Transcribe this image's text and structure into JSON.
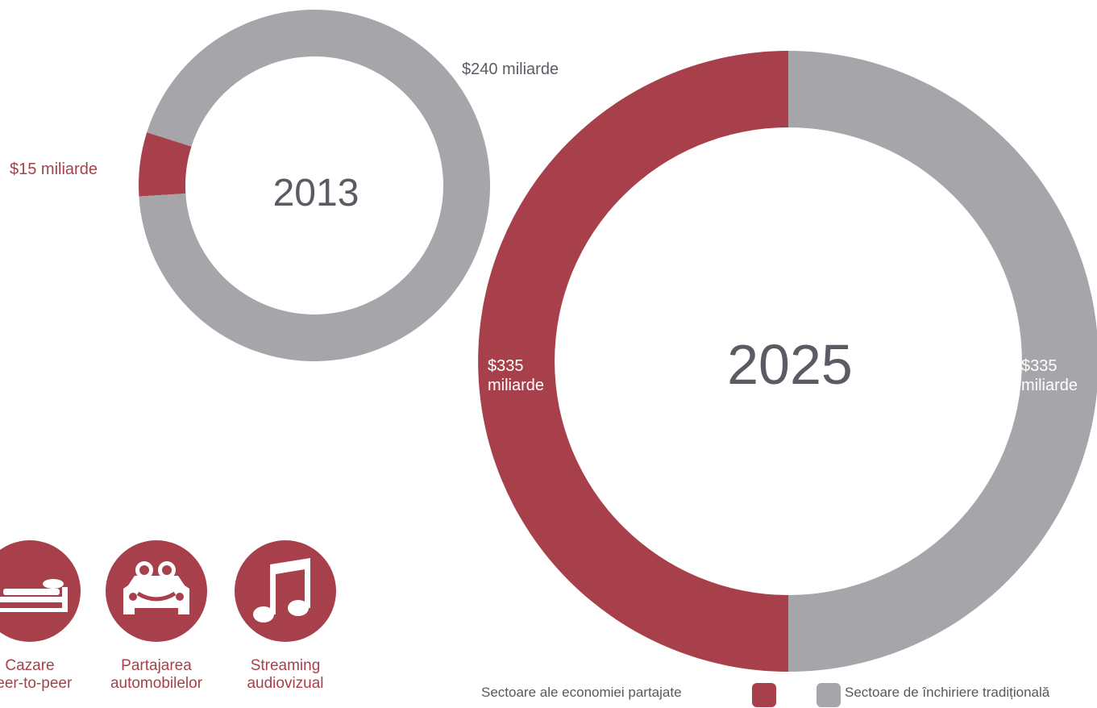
{
  "colors": {
    "sharing": "#a8404b",
    "traditional": "#a5a5aa",
    "year_text": "#5b5b63"
  },
  "chart_data": [
    {
      "type": "pie",
      "style": "donut",
      "center_label": "2013",
      "series": [
        {
          "name": "Sectoare ale economiei partajate",
          "value": 15,
          "label": "$15 miliarde"
        },
        {
          "name": "Sectoare de închiriere tradițională",
          "value": 240,
          "label": "$240 miliarde"
        }
      ],
      "legend_placement": "bottom"
    },
    {
      "type": "pie",
      "style": "donut",
      "center_label": "2025",
      "series": [
        {
          "name": "Sectoare ale economiei partajate",
          "value": 335,
          "label": "$335\nmiliarde"
        },
        {
          "name": "Sectoare de închiriere tradițională",
          "value": 335,
          "label": "$335\nmiliarde"
        }
      ],
      "legend_placement": "bottom"
    }
  ],
  "sectors": [
    {
      "icon": "bed-icon",
      "label": "Cazare\npeer-to-peer"
    },
    {
      "icon": "car-sharing-icon",
      "label": "Partajarea\nautomobilelor"
    },
    {
      "icon": "music-note-icon",
      "label": "Streaming\naudiovizual"
    }
  ],
  "legend": {
    "sharing": "Sectoare ale economiei partajate",
    "traditional": "Sectoare de închiriere tradițională"
  }
}
